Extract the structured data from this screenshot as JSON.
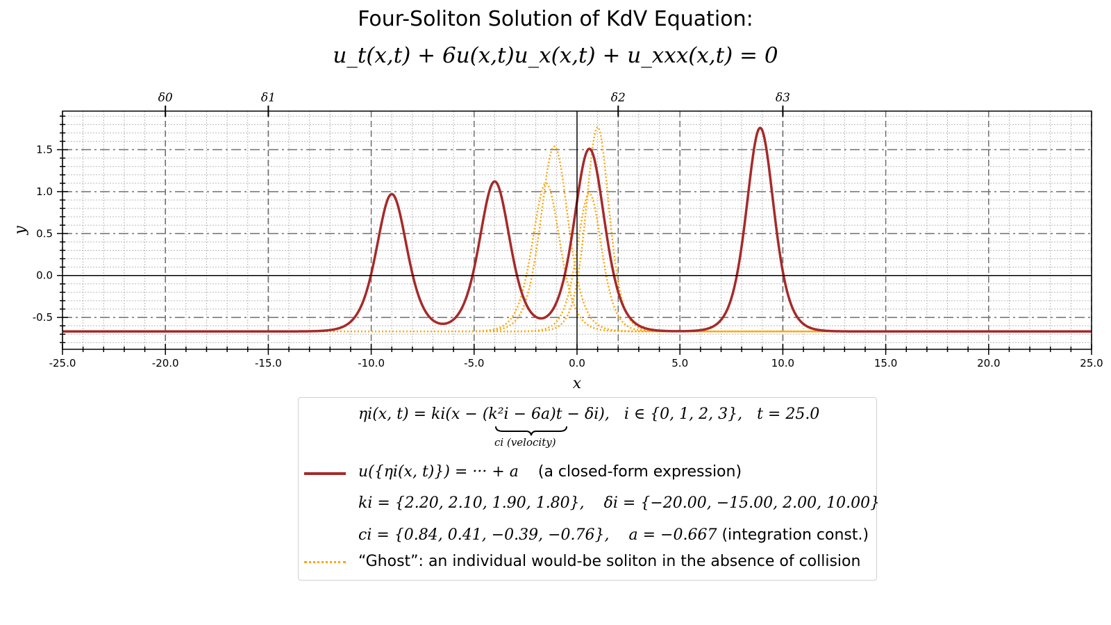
{
  "title": {
    "line1": "Four-Soliton Solution of KdV Equation:",
    "line2": "u_t(x,t) + 6u(x,t)u_x(x,t) + u_xxx(x,t) = 0"
  },
  "chart_data": {
    "type": "line",
    "xlabel": "x",
    "ylabel": "y",
    "xlim": [
      -25,
      25
    ],
    "ylim": [
      -0.88,
      1.96
    ],
    "grid": true,
    "colors": {
      "solution": "#a52a2a",
      "ghost": "#ffa500"
    },
    "x_ticks": [
      "-25.0",
      "-20.0",
      "-15.0",
      "-10.0",
      "-5.0",
      "0.0",
      "5.0",
      "10.0",
      "15.0",
      "20.0",
      "25.0"
    ],
    "y_ticks": [
      "-0.5",
      "0.0",
      "0.5",
      "1.0",
      "1.5"
    ],
    "top_ticks": [
      {
        "label": "δ0",
        "x": -20
      },
      {
        "label": "δ1",
        "x": -15
      },
      {
        "label": "δ2",
        "x": 2
      },
      {
        "label": "δ3",
        "x": 10
      }
    ],
    "params": {
      "t": 25.0,
      "a": -0.667,
      "k": [
        2.2,
        2.1,
        1.9,
        1.8
      ],
      "delta": [
        -20.0,
        -15.0,
        2.0,
        10.0
      ],
      "c": [
        0.84,
        0.41,
        -0.39,
        -0.76
      ]
    },
    "series": [
      {
        "name": "u({η_i(x,t)}) = ⋯ + a   (a closed-form expression)",
        "style": "solid",
        "points": [
          [
            -25,
            -0.667
          ],
          [
            -13,
            -0.66
          ],
          [
            -10.5,
            -0.2
          ],
          [
            -9,
            0.97
          ],
          [
            -7.5,
            -0.2
          ],
          [
            -6.5,
            -0.55
          ],
          [
            -5.2,
            0.1
          ],
          [
            -4,
            1.12
          ],
          [
            -2.8,
            0.0
          ],
          [
            -1.6,
            -0.48
          ],
          [
            -0.5,
            0.5
          ],
          [
            0.6,
            1.51
          ],
          [
            1.8,
            0.0
          ],
          [
            3,
            -0.55
          ],
          [
            5,
            -0.667
          ],
          [
            7.5,
            -0.4
          ],
          [
            8.9,
            1.76
          ],
          [
            10.3,
            -0.4
          ],
          [
            13,
            -0.66
          ],
          [
            25,
            -0.667
          ]
        ]
      },
      {
        "name": "“Ghost”: an individual would-be soliton in the absence of collision",
        "style": "dotted",
        "peaks_x": [
          -1.5,
          -1.1,
          0.6,
          1.0
        ],
        "peaks_y": [
          1.1,
          1.54,
          0.98,
          1.77
        ]
      }
    ]
  },
  "legend": {
    "eta_lhs": "ηi(x, t) = ki(x − ",
    "eta_brace": "(k²i − 6a)",
    "eta_rhs": "t − δi),",
    "eta_set": "i ∈ {0, 1, 2, 3},",
    "eta_t": "t = 25.0",
    "underbrace_label": "ci (velocity)",
    "solid_math": "u({ηi(x, t)}) = ··· + a",
    "solid_text": "(a closed-form expression)",
    "k_line": "ki = {2.20, 2.10, 1.90, 1.80},",
    "delta_line": "δi = {−20.00, −15.00, 2.00, 10.00}",
    "c_line": "ci = {0.84, 0.41, −0.39, −0.76},",
    "a_line": "a = −0.667",
    "a_text": "(integration const.)",
    "ghost_text": "“Ghost”: an individual would-be soliton in the absence of collision"
  }
}
